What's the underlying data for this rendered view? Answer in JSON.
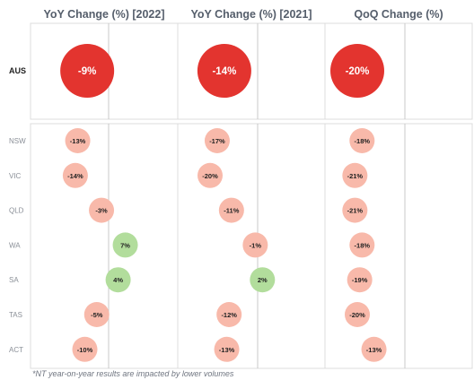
{
  "chart_data": {
    "type": "dot-matrix",
    "columns": [
      "YoY Change (%) [2022]",
      "YoY Change (%) [2021]",
      "QoQ Change (%)"
    ],
    "total_row": {
      "label": "AUS",
      "values": [
        -9,
        -14,
        -20
      ],
      "labels": [
        "-9%",
        "-14%",
        "-20%"
      ]
    },
    "rows": [
      {
        "label": "NSW",
        "values": [
          -13,
          -17,
          -18
        ],
        "labels": [
          "-13%",
          "-17%",
          "-18%"
        ]
      },
      {
        "label": "VIC",
        "values": [
          -14,
          -20,
          -21
        ],
        "labels": [
          "-14%",
          "-20%",
          "-21%"
        ]
      },
      {
        "label": "QLD",
        "values": [
          -3,
          -11,
          -21
        ],
        "labels": [
          "-3%",
          "-11%",
          "-21%"
        ]
      },
      {
        "label": "WA",
        "values": [
          7,
          -1,
          -18
        ],
        "labels": [
          "7%",
          "-1%",
          "-18%"
        ]
      },
      {
        "label": "SA",
        "values": [
          4,
          2,
          -19
        ],
        "labels": [
          "4%",
          "2%",
          "-19%"
        ]
      },
      {
        "label": "TAS",
        "values": [
          -5,
          -12,
          -20
        ],
        "labels": [
          "-5%",
          "-12%",
          "-20%"
        ]
      },
      {
        "label": "ACT",
        "values": [
          -10,
          -13,
          -13
        ],
        "labels": [
          "-10%",
          "-13%",
          "-13%"
        ]
      }
    ],
    "colors": {
      "total_negative": "#e3342f",
      "negative": "#f8b9aa",
      "positive": "#b2dd9c",
      "zero_line": "#c9c9c9",
      "divider": "#dcdcdc"
    }
  },
  "footnote": "*NT year-on-year results are impacted by lower volumes"
}
